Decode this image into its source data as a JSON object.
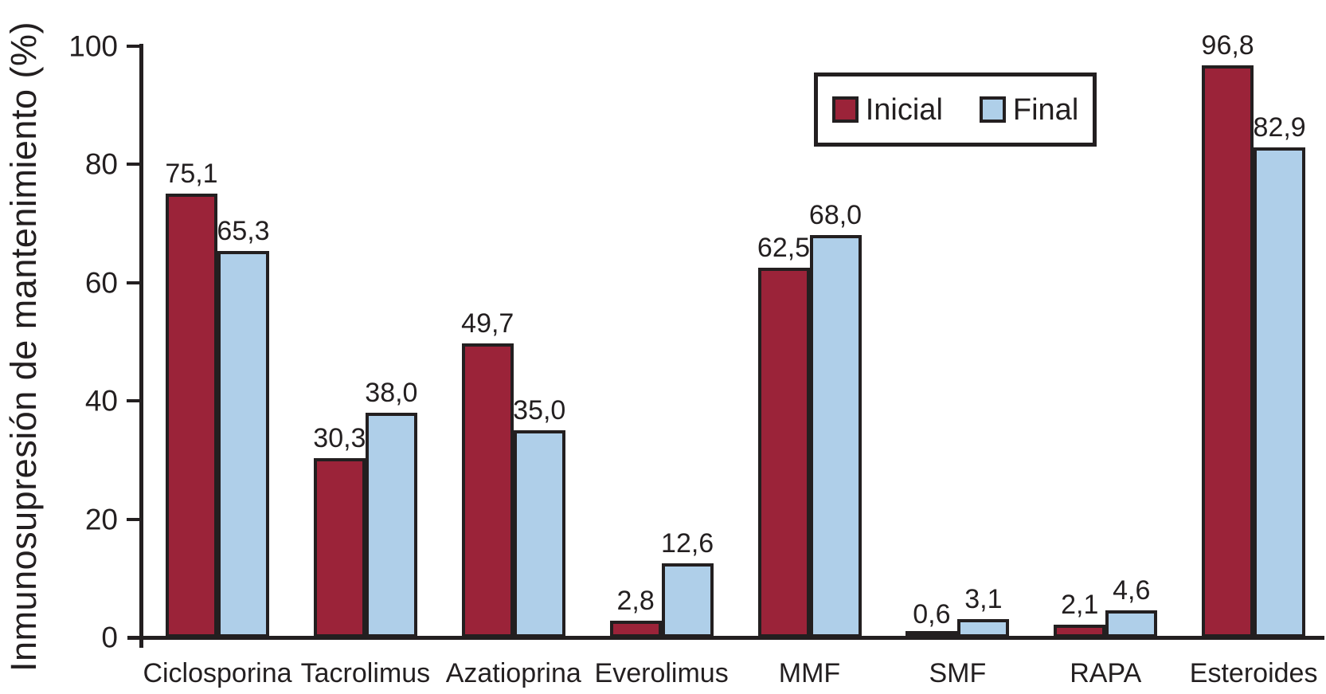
{
  "chart_data": {
    "type": "bar",
    "title": "",
    "xlabel": "",
    "ylabel": "Inmunosupresión de mantenimiento (%)",
    "ylim": [
      0,
      100
    ],
    "yticks": [
      0,
      20,
      40,
      60,
      80,
      100
    ],
    "ytick_labels": [
      "0",
      "20",
      "40",
      "60",
      "80",
      "100"
    ],
    "grid": false,
    "legend_position": "top-right",
    "decimal_separator": ",",
    "categories": [
      "Ciclosporina",
      "Tacrolimus",
      "Azatioprina",
      "Everolimus",
      "MMF",
      "SMF",
      "RAPA",
      "Esteroides"
    ],
    "series": [
      {
        "name": "Inicial",
        "color": "#9B2339",
        "values": [
          75.1,
          30.3,
          49.7,
          2.8,
          62.5,
          0.6,
          2.1,
          96.8
        ],
        "labels": [
          "75,1",
          "30,3",
          "49,7",
          "2,8",
          "62,5",
          "0,6",
          "2,1",
          "96,8"
        ]
      },
      {
        "name": "Final",
        "color": "#AFCFE9",
        "values": [
          65.3,
          38.0,
          35.0,
          12.6,
          68.0,
          3.1,
          4.6,
          82.9
        ],
        "labels": [
          "65,3",
          "38,0",
          "35,0",
          "12,6",
          "68,0",
          "3,1",
          "4,6",
          "82,9"
        ]
      }
    ]
  },
  "colors": {
    "ink": "#231F20",
    "background": "#FFFFFF",
    "inicial": "#9B2339",
    "final": "#AFCFE9"
  }
}
